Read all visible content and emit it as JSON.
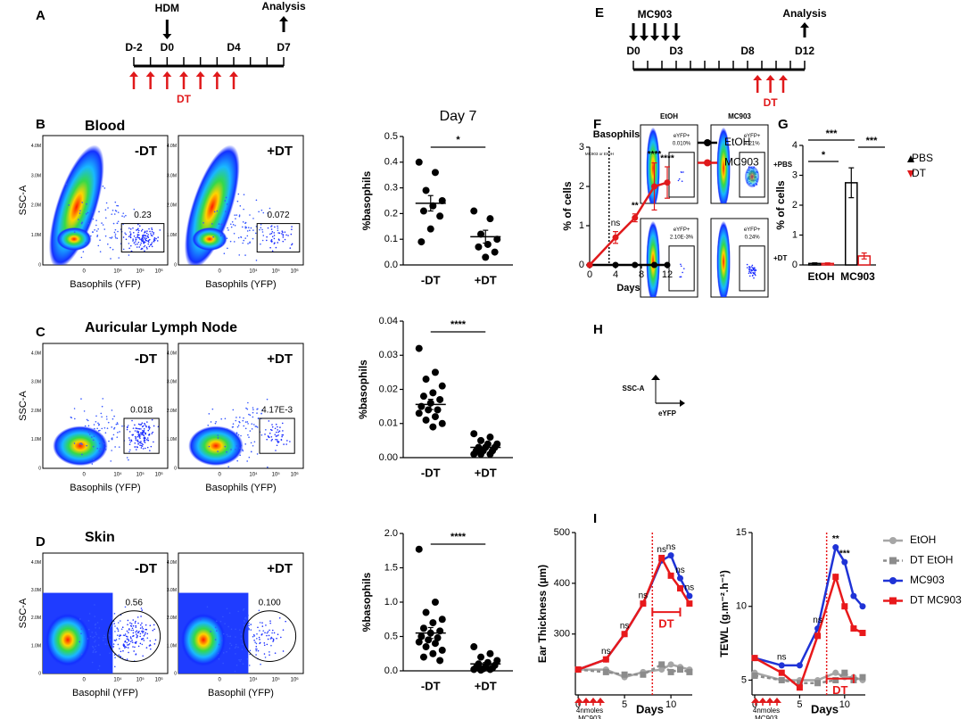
{
  "letters": [
    "A",
    "B",
    "C",
    "D",
    "E",
    "F",
    "G",
    "H",
    "I"
  ],
  "timelines": [
    {
      "top": "HDM",
      "days": [
        "D-2",
        "D0",
        "D4",
        "D7"
      ],
      "analysis": "Analysis",
      "dt": "DT"
    },
    {
      "top": "MC903",
      "days": [
        "D0",
        "D3",
        "D8",
        "D12"
      ],
      "analysis": "Analysis",
      "dt": "DT"
    }
  ],
  "flow": [
    {
      "title": "Blood",
      "ylabel": "SSC-A",
      "yticks": [
        "4.0M",
        "3.0M",
        "2.0M",
        "1.0M",
        "0"
      ],
      "xticks": [
        "0",
        "10⁴",
        "10⁵",
        "10⁶"
      ],
      "plots": [
        {
          "label": "-DT",
          "xlabel": "Basophils (YFP)",
          "gate": "0.23"
        },
        {
          "label": "+DT",
          "xlabel": "Basophils (YFP)",
          "gate": "0.072"
        }
      ]
    },
    {
      "title": "Auricular Lymph Node",
      "ylabel": "SSC-A",
      "yticks": [
        "4.0M",
        "3.0M",
        "2.0M",
        "1.0M",
        "0"
      ],
      "xticks": [
        "0",
        "10⁴",
        "10⁵",
        "10⁶"
      ],
      "plots": [
        {
          "label": "-DT",
          "xlabel": "Basophils (YFP)",
          "gate": "0.018"
        },
        {
          "label": "+DT",
          "xlabel": "Basophils (YFP)",
          "gate": "4.17E-3"
        }
      ]
    },
    {
      "title": "Skin",
      "ylabel": "SSC-A",
      "yticks": [
        "4.0M",
        "3.0M",
        "2.0M",
        "1.0M",
        "0"
      ],
      "xticks": [
        "0",
        "10⁴",
        "10⁵",
        "10⁶"
      ],
      "plots": [
        {
          "label": "-DT",
          "xlabel": "Basophil (YFP)",
          "gate": "0.56"
        },
        {
          "label": "+DT",
          "xlabel": "Basophil (YFP)",
          "gate": "0.100"
        }
      ]
    }
  ],
  "H": {
    "cols": [
      "EtOH",
      "MC903"
    ],
    "rows": [
      "+PBS",
      "+DT"
    ],
    "gates": [
      [
        "eYFP+",
        "0.010%"
      ],
      [
        "eYFP+",
        "4.21%"
      ],
      [
        "eYFP+",
        "2.10E-3%"
      ],
      [
        "eYFP+",
        "0.24%"
      ]
    ],
    "ylabel": "SSC-A",
    "xlabel": "eYFP"
  },
  "chart_data": [
    {
      "type": "dot",
      "title": "Day 7",
      "ylabel": "%basophils",
      "categories": [
        "-DT",
        "+DT"
      ],
      "color": "#000000",
      "values": [
        0.24,
        0.11
      ],
      "errors": [
        0.03,
        0.025
      ],
      "points": [
        [
          0.4,
          0.36,
          0.29,
          0.25,
          0.23,
          0.21,
          0.19,
          0.14,
          0.09
        ],
        [
          0.21,
          0.18,
          0.12,
          0.1,
          0.08,
          0.07,
          0.05,
          0.03
        ]
      ],
      "ylim": [
        0,
        0.5
      ],
      "yticks": [
        {
          "value": 0,
          "label": "0.0"
        },
        0.1,
        0.2,
        0.3,
        0.4,
        0.5
      ],
      "significance": "*"
    },
    {
      "type": "dot",
      "ylabel": "%basophils",
      "categories": [
        "-DT",
        "+DT"
      ],
      "color": "#000000",
      "values": [
        0.0156,
        0.003
      ],
      "errors": [
        0.0015,
        0.0005
      ],
      "points": [
        [
          0.032,
          0.025,
          0.023,
          0.021,
          0.019,
          0.018,
          0.017,
          0.016,
          0.015,
          0.014,
          0.014,
          0.013,
          0.012,
          0.011,
          0.01,
          0.009
        ],
        [
          0.007,
          0.006,
          0.005,
          0.004,
          0.004,
          0.003,
          0.003,
          0.003,
          0.002,
          0.002,
          0.002,
          0.001,
          0.001,
          0.001
        ]
      ],
      "ylim": [
        0,
        0.04
      ],
      "yticks": [
        {
          "value": 0,
          "label": "0.00"
        },
        {
          "value": 0.01,
          "label": "0.01"
        },
        {
          "value": 0.02,
          "label": "0.02"
        },
        {
          "value": 0.03,
          "label": "0.03"
        },
        {
          "value": 0.04,
          "label": "0.04"
        }
      ],
      "significance": "****"
    },
    {
      "type": "dot",
      "ylabel": "%basophils",
      "categories": [
        "-DT",
        "+DT"
      ],
      "color": "#000000",
      "values": [
        0.55,
        0.1
      ],
      "errors": [
        0.08,
        0.02
      ],
      "points": [
        [
          1.77,
          1.0,
          0.85,
          0.75,
          0.7,
          0.62,
          0.58,
          0.55,
          0.5,
          0.48,
          0.45,
          0.42,
          0.4,
          0.35,
          0.3,
          0.25,
          0.2,
          0.15
        ],
        [
          0.35,
          0.25,
          0.2,
          0.15,
          0.12,
          0.1,
          0.08,
          0.06,
          0.05,
          0.04,
          0.03,
          0.02,
          0.02,
          0.01
        ]
      ],
      "ylim": [
        0,
        2
      ],
      "yticks": [
        {
          "value": 0,
          "label": "0.0"
        },
        0.5,
        {
          "value": 1,
          "label": "1.0"
        },
        1.5,
        {
          "value": 2,
          "label": "2.0"
        }
      ],
      "significance": "****"
    },
    {
      "type": "line",
      "title": "Basophils",
      "ylabel": "% of cells",
      "xlabel": "Days",
      "x": [
        0,
        4,
        7,
        10,
        12
      ],
      "series": [
        {
          "name": "EtOH",
          "color": "#000000",
          "marker": "circle",
          "values": [
            0,
            0,
            0,
            0,
            0
          ]
        },
        {
          "name": "MC903",
          "color": "#e0191b",
          "marker": "circle",
          "values": [
            0,
            0.7,
            1.2,
            2.0,
            2.1
          ],
          "errors": [
            0,
            0.15,
            0.1,
            0.6,
            0.4
          ]
        }
      ],
      "xlim": [
        0,
        12
      ],
      "xticks": [
        0,
        4,
        8,
        12
      ],
      "ylim": [
        0,
        3
      ],
      "yticks": [
        0,
        1,
        2,
        3
      ],
      "vline": 3,
      "vline_label": "MC903 or EtOH",
      "vline_color": "#000000",
      "annotations": [
        {
          "text": "ns",
          "x": 4
        },
        {
          "text": "**",
          "x": 7
        },
        {
          "text": "****",
          "x": 10
        },
        {
          "text": "****",
          "x": 12
        }
      ]
    },
    {
      "type": "bar",
      "ylabel": "% of cells",
      "categories": [
        "EtOH",
        "MC903"
      ],
      "series": [
        {
          "name": "PBS",
          "color": "#000000",
          "marker": "tri-up",
          "values": [
            0.05,
            2.75
          ],
          "errors": [
            0.02,
            0.5
          ]
        },
        {
          "name": "DT",
          "color": "#e0191b",
          "marker": "tri-down",
          "values": [
            0.05,
            0.3
          ],
          "errors": [
            0.02,
            0.1
          ]
        }
      ],
      "ylim": [
        0,
        4
      ],
      "yticks": [
        0,
        1,
        2,
        3,
        4
      ],
      "annotations": [
        {
          "text": "***"
        },
        {
          "text": "*"
        },
        {
          "text": "***"
        }
      ]
    },
    {
      "type": "line",
      "ylabel": "Ear Thickness (µm)",
      "xlabel": "Days",
      "note": [
        "4nmoles",
        "MC903"
      ],
      "x": [
        0,
        3,
        5,
        7,
        9,
        10,
        11,
        12
      ],
      "series": [
        {
          "color": "#a6a6a6",
          "marker": "circle",
          "values": [
            230,
            230,
            215,
            225,
            230,
            240,
            235,
            230
          ]
        },
        {
          "color": "#8c8c8c",
          "marker": "square",
          "dash": true,
          "values": [
            230,
            225,
            220,
            220,
            240,
            225,
            230,
            225
          ]
        },
        {
          "color": "#1f33d6",
          "marker": "circle",
          "values": [
            230,
            250,
            300,
            360,
            445,
            455,
            410,
            375
          ]
        },
        {
          "color": "#e8191b",
          "marker": "square",
          "values": [
            230,
            250,
            300,
            360,
            450,
            415,
            390,
            360
          ]
        }
      ],
      "xlim": [
        -0.3,
        12.3
      ],
      "xticks": [
        0,
        5,
        10
      ],
      "ylim": [
        180,
        500
      ],
      "yticks": [
        300,
        400,
        500
      ],
      "vline": 8,
      "vline_color": "#e8191b",
      "bracket": {
        "text": "DT",
        "from": 8,
        "to": 11
      },
      "annotations": [
        {
          "text": "ns",
          "x": 3
        },
        {
          "text": "ns",
          "x": 5
        },
        {
          "text": "ns",
          "x": 7
        },
        {
          "text": "ns",
          "x": 9
        },
        {
          "text": "ns",
          "x": 10
        },
        {
          "text": "ns",
          "x": 11
        },
        {
          "text": "ns",
          "x": 12
        }
      ]
    },
    {
      "type": "line",
      "ylabel": "TEWL (g.m⁻².h⁻¹)",
      "xlabel": "Days",
      "note": [
        "4nmoles",
        "MC903"
      ],
      "x": [
        0,
        3,
        5,
        7,
        9,
        10,
        11,
        12
      ],
      "series": [
        {
          "name": "EtOH",
          "color": "#a6a6a6",
          "marker": "circle",
          "values": [
            5.5,
            5,
            5,
            5,
            5.5,
            5.2,
            5.2,
            5
          ]
        },
        {
          "name": "DT EtOH",
          "color": "#8c8c8c",
          "marker": "square",
          "dash": true,
          "values": [
            5.3,
            5,
            4.8,
            4.8,
            5,
            5.5,
            5,
            5.2
          ]
        },
        {
          "name": "MC903",
          "color": "#1f33d6",
          "marker": "circle",
          "values": [
            6.5,
            6,
            6,
            8.5,
            14,
            13,
            10.7,
            10
          ]
        },
        {
          "name": "DT MC903",
          "color": "#e8191b",
          "marker": "square",
          "values": [
            6.5,
            5.5,
            4.5,
            8,
            12,
            10,
            8.5,
            8.2
          ]
        }
      ],
      "xlim": [
        -0.3,
        12.3
      ],
      "xticks": [
        0,
        5,
        10
      ],
      "ylim": [
        4,
        15
      ],
      "yticks": [
        5,
        10,
        15
      ],
      "vline": 8,
      "vline_color": "#e8191b",
      "bracket": {
        "text": "DT",
        "from": 8,
        "to": 11
      },
      "annotations": [
        {
          "text": "ns",
          "x": 3
        },
        {
          "text": "ns",
          "x": 7
        },
        {
          "text": "**",
          "x": 9
        },
        {
          "text": "***",
          "x": 10
        }
      ]
    }
  ]
}
